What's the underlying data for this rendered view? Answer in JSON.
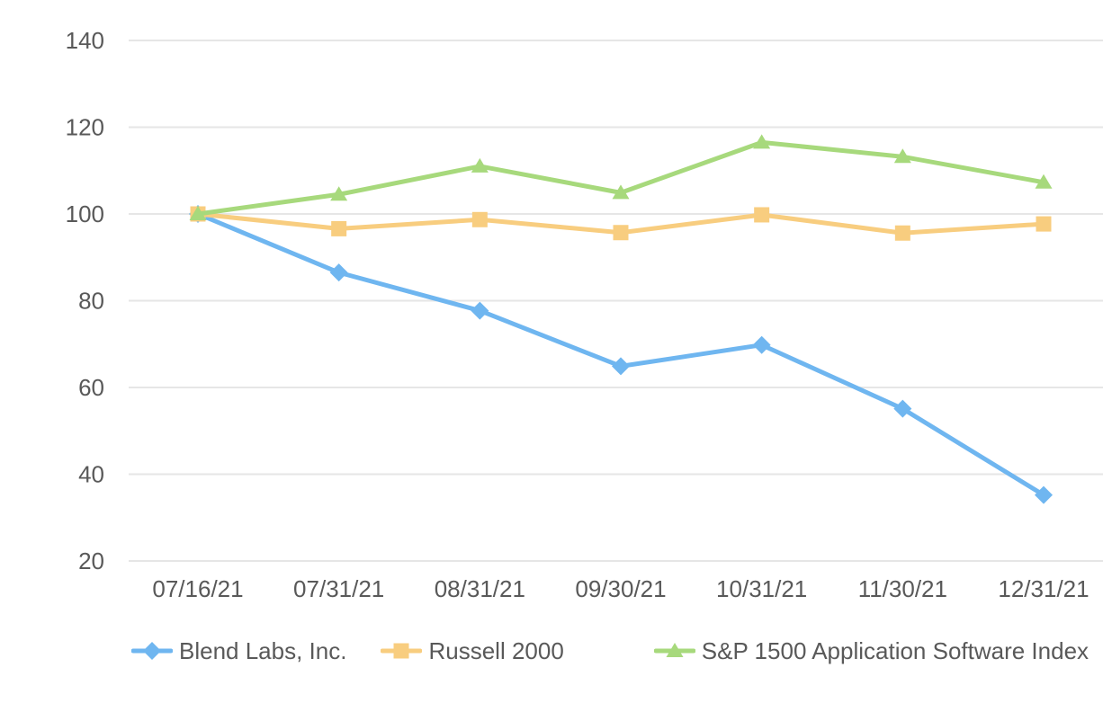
{
  "chart_data": {
    "type": "line",
    "title": "",
    "xlabel": "",
    "ylabel": "",
    "categories": [
      "07/16/21",
      "07/31/21",
      "08/31/21",
      "09/30/21",
      "10/31/21",
      "11/30/21",
      "12/31/21"
    ],
    "series": [
      {
        "name": "Blend Labs, Inc.",
        "color": "#6FB6F0",
        "marker": "diamond",
        "values": [
          100.0,
          86.5,
          77.7,
          64.9,
          69.8,
          55.1,
          35.2
        ]
      },
      {
        "name": "Russell 2000",
        "color": "#F8CD7F",
        "marker": "square",
        "values": [
          100.0,
          96.6,
          98.7,
          95.7,
          99.8,
          95.6,
          97.7
        ]
      },
      {
        "name": "S&P 1500 Application Software Index",
        "color": "#A7D97C",
        "marker": "triangle",
        "values": [
          100.0,
          104.5,
          111.0,
          104.9,
          116.5,
          113.2,
          107.3
        ]
      }
    ],
    "ylim": [
      20,
      140
    ],
    "ytick_step": 20,
    "yticks": [
      140,
      120,
      100,
      80,
      60,
      40,
      20
    ],
    "grid": "horizontal-only",
    "legend_position": "bottom",
    "text_color": "#595959",
    "gridline_color": "#E6E6E6",
    "background_color": "#FFFFFF"
  }
}
